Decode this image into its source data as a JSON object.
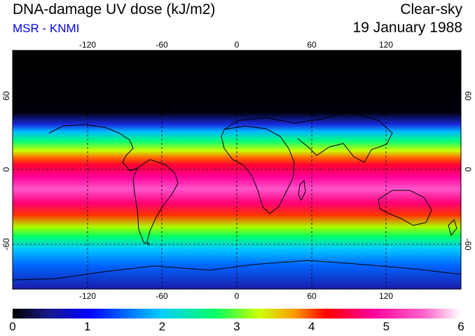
{
  "header": {
    "title": "DNA-damage UV dose (kJ/m2)",
    "source": "MSR - KNMI",
    "condition": "Clear-sky",
    "date": "19 January 1988"
  },
  "map": {
    "lon_ticks": [
      "-120",
      "-60",
      "0",
      "60",
      "120"
    ],
    "lat_ticks": [
      "60",
      "0",
      "-60"
    ],
    "lon_values": [
      -120,
      -60,
      0,
      60,
      120
    ],
    "lat_values": [
      60,
      0,
      -60
    ],
    "lon_range": [
      -180,
      180
    ],
    "lat_range": [
      -90,
      90
    ]
  },
  "colorbar": {
    "labels": [
      "0",
      "1",
      "2",
      "3",
      "4",
      "5",
      "6"
    ],
    "range": [
      0,
      6
    ],
    "colors": [
      "#000000",
      "#1a1a8a",
      "#0000ff",
      "#00ccff",
      "#00ff66",
      "#ccff00",
      "#ff9900",
      "#ff0000",
      "#ff0099",
      "#ff66cc",
      "#ffffff"
    ]
  }
}
